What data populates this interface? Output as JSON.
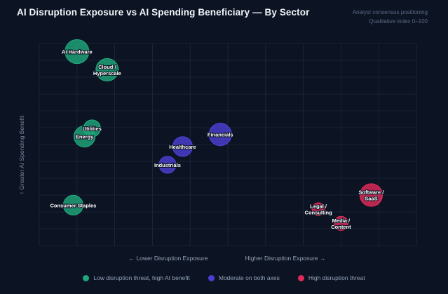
{
  "header": {
    "title": "AI Disruption Exposure vs AI Spending Beneficiary — By Sector",
    "note_line1": "Analyst consensus positioning",
    "note_line2": "Qualitative index 0–100"
  },
  "colors": {
    "background": "#0c1322",
    "grid": "#1e2a3c",
    "low": "#1fa67a",
    "moderate": "#4b3fd1",
    "high": "#df2b5a"
  },
  "chart_data": {
    "type": "scatter",
    "title": "AI Disruption Exposure vs AI Spending Beneficiary — By Sector",
    "xlabel_left": "← Lower Disruption Exposure",
    "xlabel_right": "Higher Disruption Exposure →",
    "ylabel": "↑ Greater AI Spending Benefit",
    "xlim": [
      0,
      100
    ],
    "ylim": [
      0,
      100
    ],
    "grid": true,
    "legend_position": "bottom",
    "categories": [
      {
        "id": "low",
        "label": "Low disruption threat, high AI benefit",
        "color": "#1fa67a"
      },
      {
        "id": "moderate",
        "label": "Moderate on both axes",
        "color": "#4b3fd1"
      },
      {
        "id": "high",
        "label": "High disruption threat",
        "color": "#df2b5a"
      }
    ],
    "points": [
      {
        "label": "AI Hardware",
        "x": 10,
        "y": 96,
        "size": 17,
        "category": "low"
      },
      {
        "label": "Cloud / Hyperscale",
        "x": 18,
        "y": 87,
        "size": 16,
        "category": "low"
      },
      {
        "label": "Utilities",
        "x": 14,
        "y": 58,
        "size": 12,
        "category": "low"
      },
      {
        "label": "Energy",
        "x": 12,
        "y": 54,
        "size": 15,
        "category": "low"
      },
      {
        "label": "Consumer Staples",
        "x": 9,
        "y": 20,
        "size": 14,
        "category": "low"
      },
      {
        "label": "Healthcare",
        "x": 38,
        "y": 49,
        "size": 14,
        "category": "moderate"
      },
      {
        "label": "Financials",
        "x": 48,
        "y": 55,
        "size": 16,
        "category": "moderate"
      },
      {
        "label": "Industrials",
        "x": 34,
        "y": 40,
        "size": 12,
        "category": "moderate"
      },
      {
        "label": "Software / SaaS",
        "x": 88,
        "y": 25,
        "size": 16,
        "category": "high"
      },
      {
        "label": "Legal / Consulting",
        "x": 74,
        "y": 18,
        "size": 9,
        "category": "high"
      },
      {
        "label": "Media / Content",
        "x": 80,
        "y": 11,
        "size": 10,
        "category": "high"
      }
    ]
  }
}
